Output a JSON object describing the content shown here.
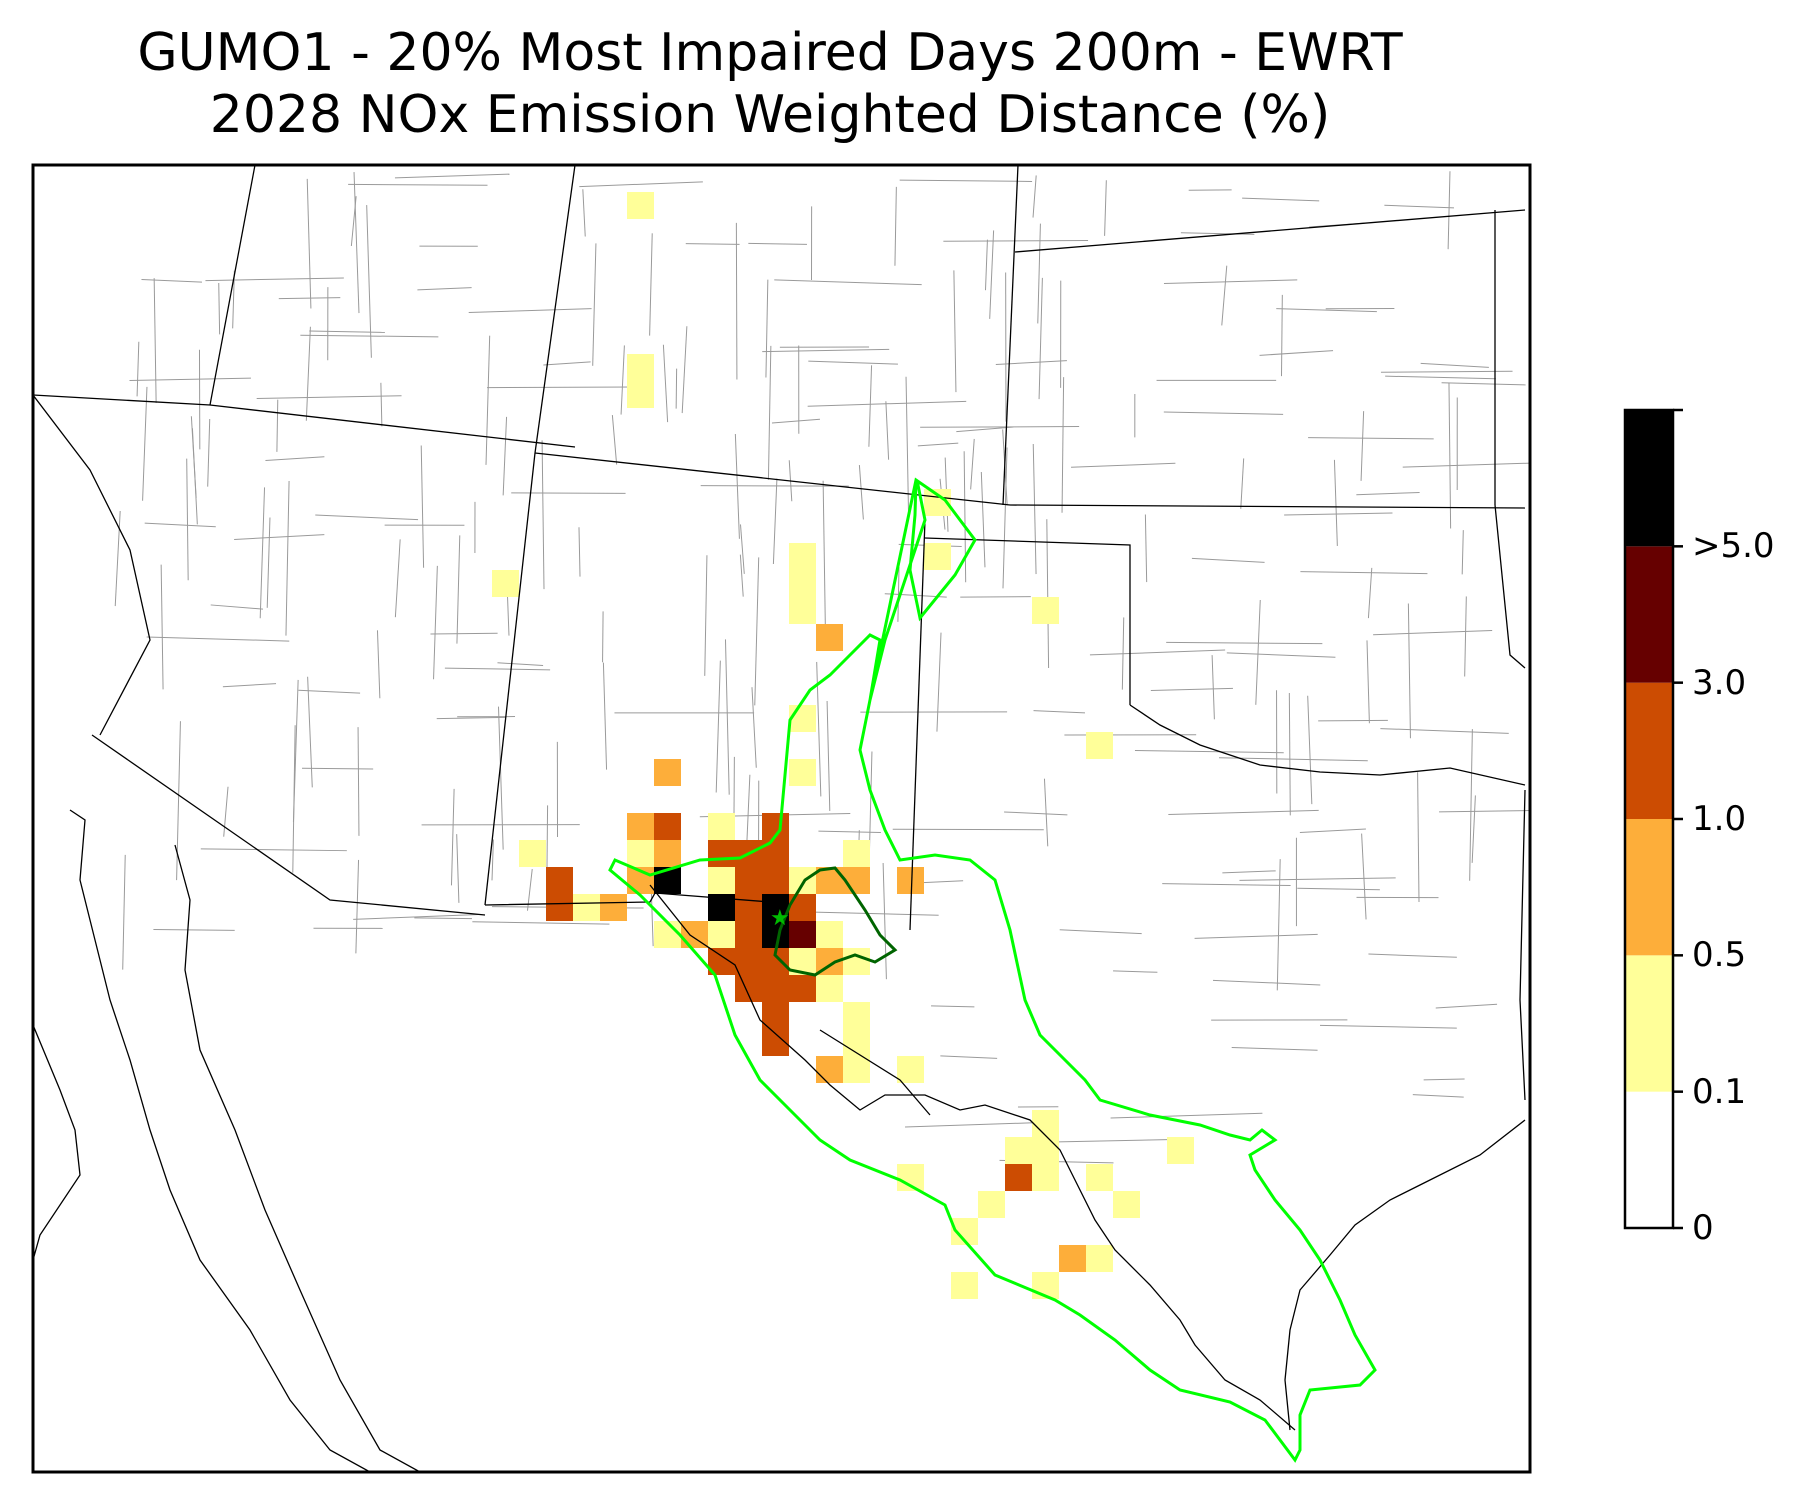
{
  "title": {
    "line1": "GUMO1 - 20% Most Impaired Days 200m - EWRT",
    "line2": "2028 NOx Emission Weighted Distance (%)"
  },
  "colorbar": {
    "bins": [
      {
        "color": "#ffffff"
      },
      {
        "color": "#ffff99"
      },
      {
        "color": "#fdae3a"
      },
      {
        "color": "#cc4c02"
      },
      {
        "color": "#660000"
      },
      {
        "color": "#000000"
      }
    ],
    "tick_labels": [
      "0",
      "0.1",
      "0.5",
      "1.0",
      "3.0",
      ">5.0"
    ]
  },
  "map": {
    "site_marker": "star-icon",
    "colors": {
      "outer_contour": "#00ff00",
      "inner_contour": "#006400",
      "state_line": "#000000",
      "county_line": "#9a9a9a"
    },
    "cell_levels_legend": "1=0.1-0.5, 2=0.5-1.0, 3=1.0-3.0, 4=3.0-5.0, 5=>5.0",
    "cells": [
      {
        "c": 22,
        "r": 1,
        "v": 1
      },
      {
        "c": 22,
        "r": 7,
        "v": 1
      },
      {
        "c": 22,
        "r": 8,
        "v": 1
      },
      {
        "c": 33,
        "r": 12,
        "v": 1
      },
      {
        "c": 33,
        "r": 14,
        "v": 1
      },
      {
        "c": 17,
        "r": 15,
        "v": 1
      },
      {
        "c": 28,
        "r": 14,
        "v": 1
      },
      {
        "c": 28,
        "r": 15,
        "v": 1
      },
      {
        "c": 28,
        "r": 16,
        "v": 1
      },
      {
        "c": 37,
        "r": 16,
        "v": 1
      },
      {
        "c": 29,
        "r": 17,
        "v": 2
      },
      {
        "c": 28,
        "r": 20,
        "v": 1
      },
      {
        "c": 28,
        "r": 22,
        "v": 1
      },
      {
        "c": 39,
        "r": 21,
        "v": 1
      },
      {
        "c": 23,
        "r": 22,
        "v": 2
      },
      {
        "c": 22,
        "r": 24,
        "v": 2
      },
      {
        "c": 23,
        "r": 24,
        "v": 3
      },
      {
        "c": 25,
        "r": 24,
        "v": 1
      },
      {
        "c": 27,
        "r": 24,
        "v": 3
      },
      {
        "c": 22,
        "r": 25,
        "v": 1
      },
      {
        "c": 23,
        "r": 25,
        "v": 2
      },
      {
        "c": 25,
        "r": 25,
        "v": 3
      },
      {
        "c": 26,
        "r": 25,
        "v": 3
      },
      {
        "c": 27,
        "r": 25,
        "v": 3
      },
      {
        "c": 30,
        "r": 25,
        "v": 1
      },
      {
        "c": 18,
        "r": 25,
        "v": 1
      },
      {
        "c": 19,
        "r": 26,
        "v": 3
      },
      {
        "c": 22,
        "r": 26,
        "v": 2
      },
      {
        "c": 23,
        "r": 26,
        "v": 5
      },
      {
        "c": 25,
        "r": 26,
        "v": 1
      },
      {
        "c": 26,
        "r": 26,
        "v": 3
      },
      {
        "c": 27,
        "r": 26,
        "v": 3
      },
      {
        "c": 28,
        "r": 26,
        "v": 1
      },
      {
        "c": 29,
        "r": 26,
        "v": 2
      },
      {
        "c": 30,
        "r": 26,
        "v": 2
      },
      {
        "c": 32,
        "r": 26,
        "v": 2
      },
      {
        "c": 19,
        "r": 27,
        "v": 3
      },
      {
        "c": 20,
        "r": 27,
        "v": 1
      },
      {
        "c": 21,
        "r": 27,
        "v": 2
      },
      {
        "c": 25,
        "r": 27,
        "v": 5
      },
      {
        "c": 26,
        "r": 27,
        "v": 3
      },
      {
        "c": 27,
        "r": 27,
        "v": 5
      },
      {
        "c": 28,
        "r": 27,
        "v": 3
      },
      {
        "c": 23,
        "r": 28,
        "v": 1
      },
      {
        "c": 24,
        "r": 28,
        "v": 2
      },
      {
        "c": 25,
        "r": 28,
        "v": 1
      },
      {
        "c": 26,
        "r": 28,
        "v": 3
      },
      {
        "c": 27,
        "r": 28,
        "v": 5
      },
      {
        "c": 28,
        "r": 28,
        "v": 4
      },
      {
        "c": 29,
        "r": 28,
        "v": 1
      },
      {
        "c": 25,
        "r": 29,
        "v": 3
      },
      {
        "c": 26,
        "r": 29,
        "v": 3
      },
      {
        "c": 27,
        "r": 29,
        "v": 3
      },
      {
        "c": 28,
        "r": 29,
        "v": 1
      },
      {
        "c": 29,
        "r": 29,
        "v": 2
      },
      {
        "c": 30,
        "r": 29,
        "v": 1
      },
      {
        "c": 26,
        "r": 30,
        "v": 3
      },
      {
        "c": 27,
        "r": 30,
        "v": 3
      },
      {
        "c": 28,
        "r": 30,
        "v": 3
      },
      {
        "c": 29,
        "r": 30,
        "v": 1
      },
      {
        "c": 27,
        "r": 31,
        "v": 3
      },
      {
        "c": 30,
        "r": 31,
        "v": 1
      },
      {
        "c": 27,
        "r": 32,
        "v": 3
      },
      {
        "c": 30,
        "r": 32,
        "v": 1
      },
      {
        "c": 29,
        "r": 33,
        "v": 2
      },
      {
        "c": 30,
        "r": 33,
        "v": 1
      },
      {
        "c": 32,
        "r": 33,
        "v": 1
      },
      {
        "c": 37,
        "r": 35,
        "v": 1
      },
      {
        "c": 36,
        "r": 36,
        "v": 1
      },
      {
        "c": 37,
        "r": 36,
        "v": 1
      },
      {
        "c": 36,
        "r": 37,
        "v": 3
      },
      {
        "c": 37,
        "r": 37,
        "v": 1
      },
      {
        "c": 42,
        "r": 36,
        "v": 1
      },
      {
        "c": 32,
        "r": 37,
        "v": 1
      },
      {
        "c": 39,
        "r": 37,
        "v": 1
      },
      {
        "c": 35,
        "r": 38,
        "v": 1
      },
      {
        "c": 40,
        "r": 38,
        "v": 1
      },
      {
        "c": 34,
        "r": 39,
        "v": 1
      },
      {
        "c": 38,
        "r": 40,
        "v": 2
      },
      {
        "c": 39,
        "r": 40,
        "v": 1
      },
      {
        "c": 34,
        "r": 41,
        "v": 1
      },
      {
        "c": 37,
        "r": 41,
        "v": 1
      }
    ]
  }
}
